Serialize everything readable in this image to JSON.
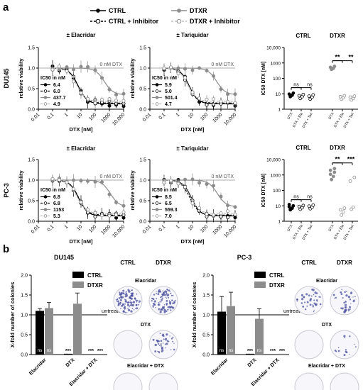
{
  "panel_labels": {
    "a": "a",
    "b": "b"
  },
  "legend": {
    "ctrl": "CTRL",
    "dtxr": "DTXR",
    "ctrl_inh": "CTRL + Inhibitor",
    "dtxr_inh": "DTXR + Inhibitor"
  },
  "colors": {
    "black": "#000000",
    "gray": "#8c8c8c",
    "light": "#bdbdbd",
    "stain": "#4a4f9e"
  },
  "chart_data": [
    {
      "id": "du145-elacridar",
      "type": "line",
      "title": "± Elacridar",
      "row_label": "DU145",
      "xlabel": "DTX [nM]",
      "ylabel": "relative viability",
      "xscale": "log",
      "xticks": [
        "0.01",
        "0.1",
        "1",
        "10",
        "100",
        "1000",
        "10,000"
      ],
      "yticks": [
        "0.0",
        "0.5",
        "1.0",
        "1.5"
      ],
      "ylim": [
        0,
        1.5
      ],
      "ref_label": "0 nM DTX",
      "ic50_title": "IC50 in nM",
      "series": [
        {
          "ic50": 6.4,
          "ic50_label": "6.4",
          "style": "black"
        },
        {
          "ic50": 6.0,
          "ic50_label": "6.0",
          "style": "black-dashed"
        },
        {
          "ic50": 437.7,
          "ic50_label": "437.7",
          "style": "gray"
        },
        {
          "ic50": 4.9,
          "ic50_label": "4.9",
          "style": "light-dashed"
        }
      ]
    },
    {
      "id": "du145-tariquidar",
      "type": "line",
      "title": "± Tariquidar",
      "xlabel": "DTX [nM]",
      "ylabel": "relative viability",
      "xscale": "log",
      "xticks": [
        "0.01",
        "0.1",
        "1",
        "10",
        "100",
        "1000",
        "10,000"
      ],
      "yticks": [
        "0.0",
        "0.5",
        "1.0",
        "1.5"
      ],
      "ylim": [
        0,
        1.5
      ],
      "ref_label": "0 nM DTX",
      "ic50_title": "IC50 in nM",
      "series": [
        {
          "ic50": 5.9,
          "ic50_label": "5.9",
          "style": "black"
        },
        {
          "ic50": 5.0,
          "ic50_label": "5.0",
          "style": "black-dashed"
        },
        {
          "ic50": 501.4,
          "ic50_label": "501.4",
          "style": "gray"
        },
        {
          "ic50": 4.7,
          "ic50_label": "4.7",
          "style": "light-dashed"
        }
      ]
    },
    {
      "id": "pc3-elacridar",
      "type": "line",
      "title": "± Elacridar",
      "row_label": "PC-3",
      "xlabel": "DTX [nM]",
      "ylabel": "relative viability",
      "xscale": "log",
      "xticks": [
        "0.01",
        "0.1",
        "1",
        "10",
        "100",
        "1000",
        "10,000"
      ],
      "yticks": [
        "0.0",
        "0.5",
        "1.0",
        "1.5"
      ],
      "ylim": [
        0,
        1.5
      ],
      "ref_label": "0 nM DTX",
      "ic50_title": "IC50 in nM",
      "series": [
        {
          "ic50": 6.8,
          "ic50_label": "6.8",
          "style": "black"
        },
        {
          "ic50": 6.8,
          "ic50_label": "6.8",
          "style": "black-dashed"
        },
        {
          "ic50": 1153,
          "ic50_label": "1153",
          "style": "gray"
        },
        {
          "ic50": 5.3,
          "ic50_label": "5.3",
          "style": "light-dashed"
        }
      ]
    },
    {
      "id": "pc3-tariquidar",
      "type": "line",
      "title": "± Tariquidar",
      "xlabel": "DTX [nM]",
      "ylabel": "relative viability",
      "xscale": "log",
      "xticks": [
        "0.01",
        "0.1",
        "1",
        "10",
        "100",
        "1000",
        "10,000"
      ],
      "yticks": [
        "0.0",
        "0.5",
        "1.0",
        "1.5"
      ],
      "ylim": [
        0,
        1.5
      ],
      "ref_label": "0 nM DTX",
      "ic50_title": "IC50 in nM",
      "series": [
        {
          "ic50": 8.5,
          "ic50_label": "8.5",
          "style": "black"
        },
        {
          "ic50": 6.5,
          "ic50_label": "6.5",
          "style": "black-dashed"
        },
        {
          "ic50": 559.3,
          "ic50_label": "559.3",
          "style": "gray"
        },
        {
          "ic50": 7.0,
          "ic50_label": "7.0",
          "style": "light-dashed"
        }
      ]
    },
    {
      "id": "du145-ic50",
      "type": "scatter",
      "ylabel": "IC50 DTX [nM]",
      "yscale": "log",
      "group_labels": [
        "CTRL",
        "DTXR"
      ],
      "yticks": [
        "1",
        "10",
        "100",
        "1000",
        "10,000"
      ],
      "categories": [
        "DTX",
        "DTX + Ela",
        "DTX + Tari",
        "DTX",
        "DTX + Ela",
        "DTX + Tari"
      ],
      "brackets": [
        {
          "from": 0,
          "to": 1,
          "label": "ns"
        },
        {
          "from": 0,
          "to": 2,
          "label": "ns"
        },
        {
          "from": 3,
          "to": 4,
          "label": "**"
        },
        {
          "from": 3,
          "to": 5,
          "label": "**"
        }
      ],
      "groups": [
        [
          6.5,
          8,
          9.5,
          11
        ],
        [
          5,
          6.5,
          7.5,
          9
        ],
        [
          4.5,
          6,
          7,
          8.5
        ],
        [
          380,
          450,
          520,
          600
        ],
        [
          4.5,
          5.5,
          6.5,
          7.5
        ],
        [
          4,
          5,
          6,
          7
        ]
      ]
    },
    {
      "id": "pc3-ic50",
      "type": "scatter",
      "ylabel": "IC50 DTX [nM]",
      "yscale": "log",
      "group_labels": [
        "CTRL",
        "DTXR"
      ],
      "yticks": [
        "1",
        "10",
        "100",
        "1000",
        "10,000"
      ],
      "categories": [
        "DTX",
        "DTX + Ela",
        "DTX + Tari",
        "DTX",
        "DTX + Ela",
        "DTX + Tari"
      ],
      "brackets": [
        {
          "from": 0,
          "to": 1,
          "label": "ns"
        },
        {
          "from": 0,
          "to": 2,
          "label": "ns"
        },
        {
          "from": 3,
          "to": 4,
          "label": "**"
        },
        {
          "from": 3,
          "to": 5,
          "label": "***"
        }
      ],
      "groups": [
        [
          5.5,
          7,
          8.5,
          10,
          12
        ],
        [
          6,
          7.5,
          9,
          10.5
        ],
        [
          6.5,
          8,
          9.5,
          11
        ],
        [
          500,
          800,
          1100,
          1500,
          2000,
          2600
        ],
        [
          2.5,
          4,
          5.5,
          7
        ],
        [
          6,
          8,
          400,
          700
        ]
      ]
    },
    {
      "id": "du145-colonies",
      "type": "bar",
      "title": "DU145",
      "ylabel": "X-fold number of colonies",
      "categories": [
        "Elacridar",
        "DTX",
        "Elacridar + DTX"
      ],
      "yticks": [
        "0.0",
        "0.5",
        "1.0",
        "1.5",
        "2.0"
      ],
      "ylim": [
        0,
        2.0
      ],
      "ref_label": "untreated",
      "series": [
        {
          "name": "CTRL",
          "values": [
            1.1,
            0.02,
            0.0
          ],
          "errors": [
            0.06,
            0.0,
            0.0
          ],
          "marks": [
            "ns",
            "***",
            "***"
          ]
        },
        {
          "name": "DTXR",
          "values": [
            1.17,
            1.28,
            0.0
          ],
          "errors": [
            0.14,
            0.27,
            0.0
          ],
          "marks": [
            "ns",
            "",
            "***"
          ]
        }
      ]
    },
    {
      "id": "pc3-colonies",
      "type": "bar",
      "title": "PC-3",
      "ylabel": "X-fold number of colonies",
      "categories": [
        "Elacridar",
        "DTX",
        "Elacridar + DTX"
      ],
      "yticks": [
        "0.0",
        "0.5",
        "1.0",
        "1.5",
        "2.0"
      ],
      "ylim": [
        0,
        2.0
      ],
      "ref_label": "untreated",
      "series": [
        {
          "name": "CTRL",
          "values": [
            1.08,
            0.02,
            0.0
          ],
          "errors": [
            0.38,
            0.0,
            0.0
          ],
          "marks": [
            "ns",
            "***",
            "***"
          ]
        },
        {
          "name": "DTXR",
          "values": [
            1.22,
            0.9,
            0.02
          ],
          "errors": [
            0.35,
            0.25,
            0.0
          ],
          "marks": [
            "ns",
            "ns",
            "***"
          ]
        }
      ]
    }
  ],
  "dishes": [
    {
      "panel": "du145",
      "col_labels": [
        "CTRL",
        "DTXR"
      ],
      "row_labels": [
        "Elacridar",
        "DTX",
        "Elacridar + DTX"
      ],
      "density": [
        [
          0.9,
          0.8
        ],
        [
          0.0,
          0.35
        ],
        [
          0.0,
          0.0
        ]
      ]
    },
    {
      "panel": "pc3",
      "col_labels": [
        "CTRL",
        "DTXR"
      ],
      "row_labels": [
        "Elacridar",
        "DTX",
        "Elacridar + DTX"
      ],
      "density": [
        [
          0.35,
          0.3
        ],
        [
          0.0,
          0.12
        ],
        [
          0.0,
          0.0
        ]
      ]
    }
  ]
}
